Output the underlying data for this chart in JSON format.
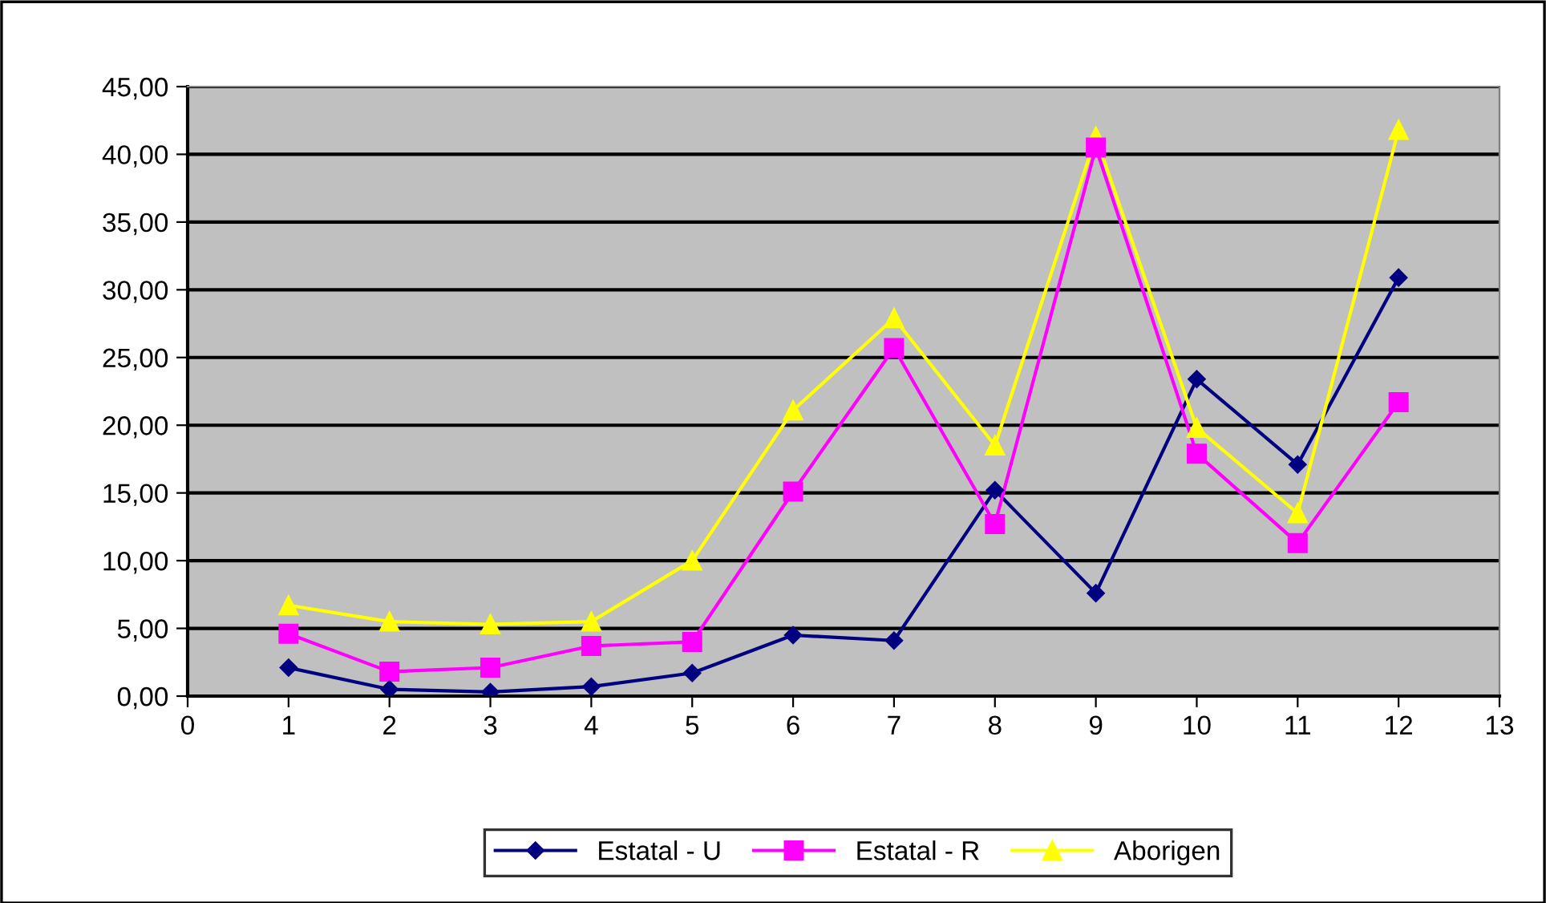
{
  "chart_data": {
    "type": "line",
    "x": [
      1,
      2,
      3,
      4,
      5,
      6,
      7,
      8,
      9,
      10,
      11,
      12
    ],
    "series": [
      {
        "name": "Estatal - U",
        "color": "#000080",
        "marker": "diamond",
        "values": [
          2.1,
          0.5,
          0.3,
          0.7,
          1.7,
          4.5,
          4.1,
          15.2,
          7.6,
          23.4,
          17.1,
          30.9
        ]
      },
      {
        "name": "Estatal - R",
        "color": "#ff00ff",
        "marker": "square",
        "values": [
          4.6,
          1.8,
          2.1,
          3.7,
          4.0,
          15.1,
          25.7,
          12.7,
          40.5,
          17.9,
          11.3,
          21.7
        ]
      },
      {
        "name": "Aborigen",
        "color": "#ffff00",
        "marker": "triangle",
        "values": [
          6.7,
          5.5,
          5.3,
          5.5,
          10.0,
          21.1,
          27.9,
          18.5,
          41.3,
          19.8,
          13.5,
          41.8
        ]
      }
    ],
    "xlim": [
      0,
      13
    ],
    "xticks": [
      0,
      1,
      2,
      3,
      4,
      5,
      6,
      7,
      8,
      9,
      10,
      11,
      12,
      13
    ],
    "ylim": [
      0,
      45
    ],
    "yticks": [
      {
        "value": 0,
        "label": "0,00"
      },
      {
        "value": 5,
        "label": "5,00"
      },
      {
        "value": 10,
        "label": "10,00"
      },
      {
        "value": 15,
        "label": "15,00"
      },
      {
        "value": 20,
        "label": "20,00"
      },
      {
        "value": 25,
        "label": "25,00"
      },
      {
        "value": 30,
        "label": "30,00"
      },
      {
        "value": 35,
        "label": "35,00"
      },
      {
        "value": 40,
        "label": "40,00"
      },
      {
        "value": 45,
        "label": "45,00"
      }
    ],
    "grid": "y",
    "legend": "bottom"
  }
}
